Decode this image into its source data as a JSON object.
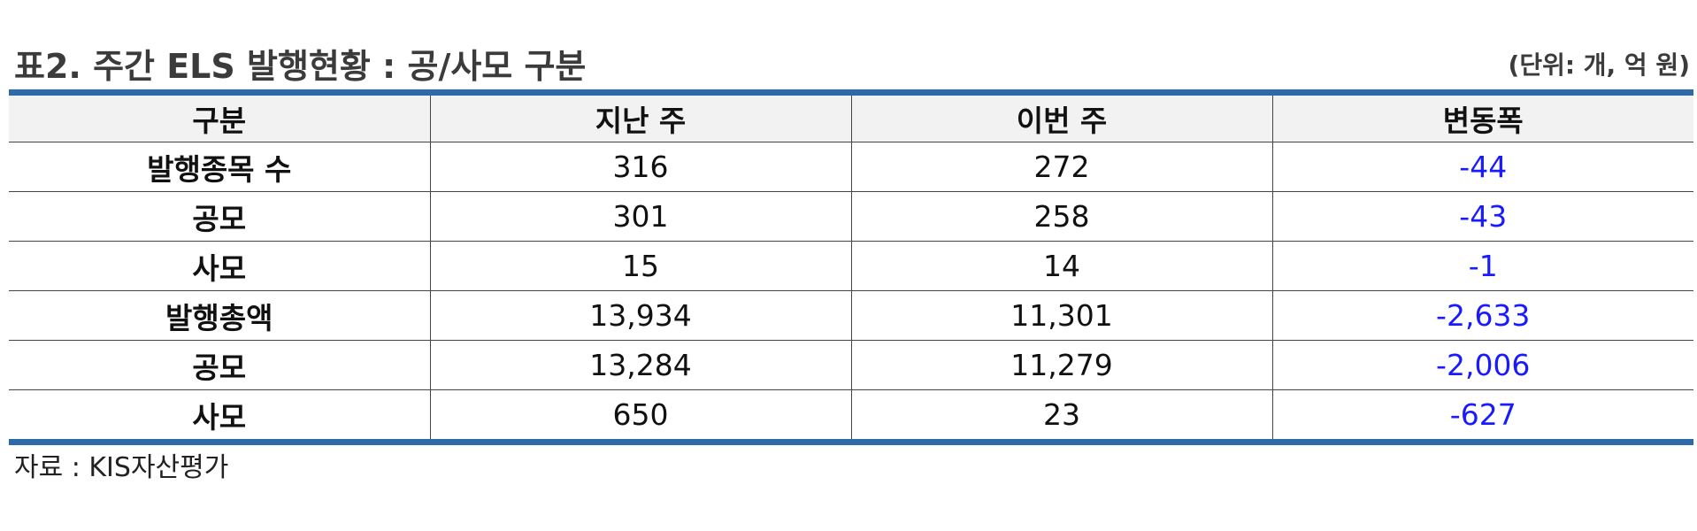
{
  "title": "표2. 주간 ELS 발행현황 : 공/사모 구분",
  "unit": "(단위: 개, 억 원)",
  "table": {
    "headers": [
      "구분",
      "지난 주",
      "이번 주",
      "변동폭"
    ],
    "rows": [
      [
        "발행종목 수",
        "316",
        "272",
        "-44"
      ],
      [
        "공모",
        "301",
        "258",
        "-43"
      ],
      [
        "사모",
        "15",
        "14",
        "-1"
      ],
      [
        "발행총액",
        "13,934",
        "11,301",
        "-2,633"
      ],
      [
        "공모",
        "13,284",
        "11,279",
        "-2,006"
      ],
      [
        "사모",
        "650",
        "23",
        "-627"
      ]
    ]
  },
  "source": "자료 : KIS자산평가",
  "colors": {
    "accent_bar": "#2e6aa9",
    "change_text": "#1a1aff",
    "header_bg": "#f2f2f2"
  }
}
